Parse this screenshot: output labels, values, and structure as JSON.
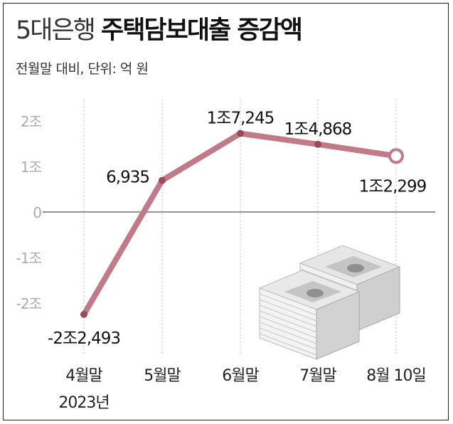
{
  "title_light": "5대은행",
  "title_bold": "주택담보대출 증감액",
  "subtitle": "전월말 대비, 단위: 억 원",
  "colors": {
    "line": "#c07a88",
    "point": "#9b4a5c",
    "grid": "#bdbdbd",
    "zero_line": "#555555",
    "tick_text": "#aaaaaa"
  },
  "chart_data": {
    "type": "line",
    "title": "5대은행 주택담보대출 증감액",
    "subtitle": "전월말 대비, 단위: 억 원",
    "categories": [
      "4월말",
      "5월말",
      "6월말",
      "7월말",
      "8월 10일"
    ],
    "category_sublabels": [
      "2023년",
      "",
      "",
      "",
      ""
    ],
    "series": [
      {
        "values": [
          -22493,
          6935,
          17245,
          14868,
          12299
        ]
      }
    ],
    "data_labels": [
      "-2조2,493",
      "6,935",
      "1조7,245",
      "1조4,868",
      "1조2,299"
    ],
    "ytick_values": [
      20000,
      10000,
      0,
      -10000,
      -20000
    ],
    "yticks": [
      "2조",
      "1조",
      "0",
      "-1조",
      "-2조"
    ],
    "ylim": [
      -20000,
      20000
    ],
    "last_point_hollow": true,
    "grid": "vertical dotted lines at each category, solid zero line"
  }
}
